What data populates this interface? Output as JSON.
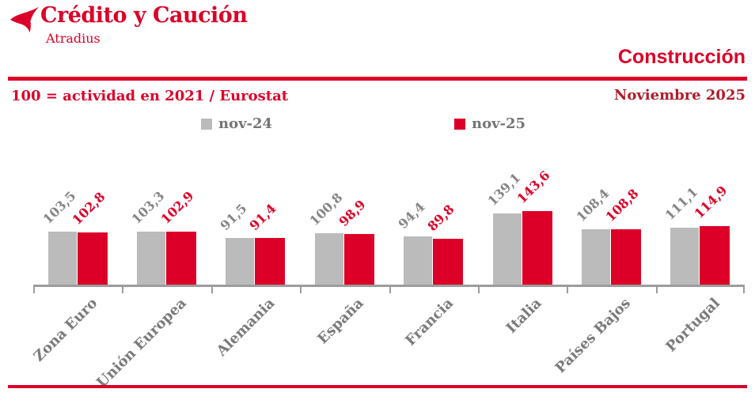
{
  "brand": {
    "name": "Crédito y Caución",
    "subtitle": "Atradius"
  },
  "header": {
    "section_title": "Construcción",
    "note_left": "100 = actividad en 2021 / Eurostat",
    "date_right": "Noviembre 2025"
  },
  "colors": {
    "red": "#DC0028",
    "dark_red": "#B01C2B",
    "gray_bar": "#BBBBBB",
    "gray_value_label": "#868686",
    "gray_category_label": "#7a7a7a",
    "axis_gray": "#9c9c9c"
  },
  "legend": [
    {
      "label": "nov-24",
      "color": "#BBBBBB"
    },
    {
      "label": "nov-25",
      "color": "#DC0028"
    }
  ],
  "chart_data": {
    "type": "bar",
    "title": "Construcción",
    "subtitle": "Noviembre 2025",
    "note": "100 = actividad en 2021 / Eurostat",
    "categories": [
      "Zona Euro",
      "Unión Europea",
      "Alemania",
      "España",
      "Francia",
      "Italia",
      "Países Bajos",
      "Portugal"
    ],
    "series": [
      {
        "name": "nov-24",
        "color": "#BBBBBB",
        "label_color": "#868686",
        "values": [
          103.5,
          103.3,
          91.5,
          100.8,
          94.4,
          139.1,
          108.4,
          111.1
        ]
      },
      {
        "name": "nov-25",
        "color": "#DC0028",
        "label_color": "#DC0028",
        "values": [
          102.8,
          102.9,
          91.4,
          98.9,
          89.8,
          143.6,
          108.8,
          114.9
        ]
      }
    ],
    "ylim": [
      0,
      150
    ],
    "grid": false,
    "legend_position": "top",
    "decimal_separator": ",",
    "value_labels_shown": true,
    "category_labels_rotation_deg": -45
  }
}
